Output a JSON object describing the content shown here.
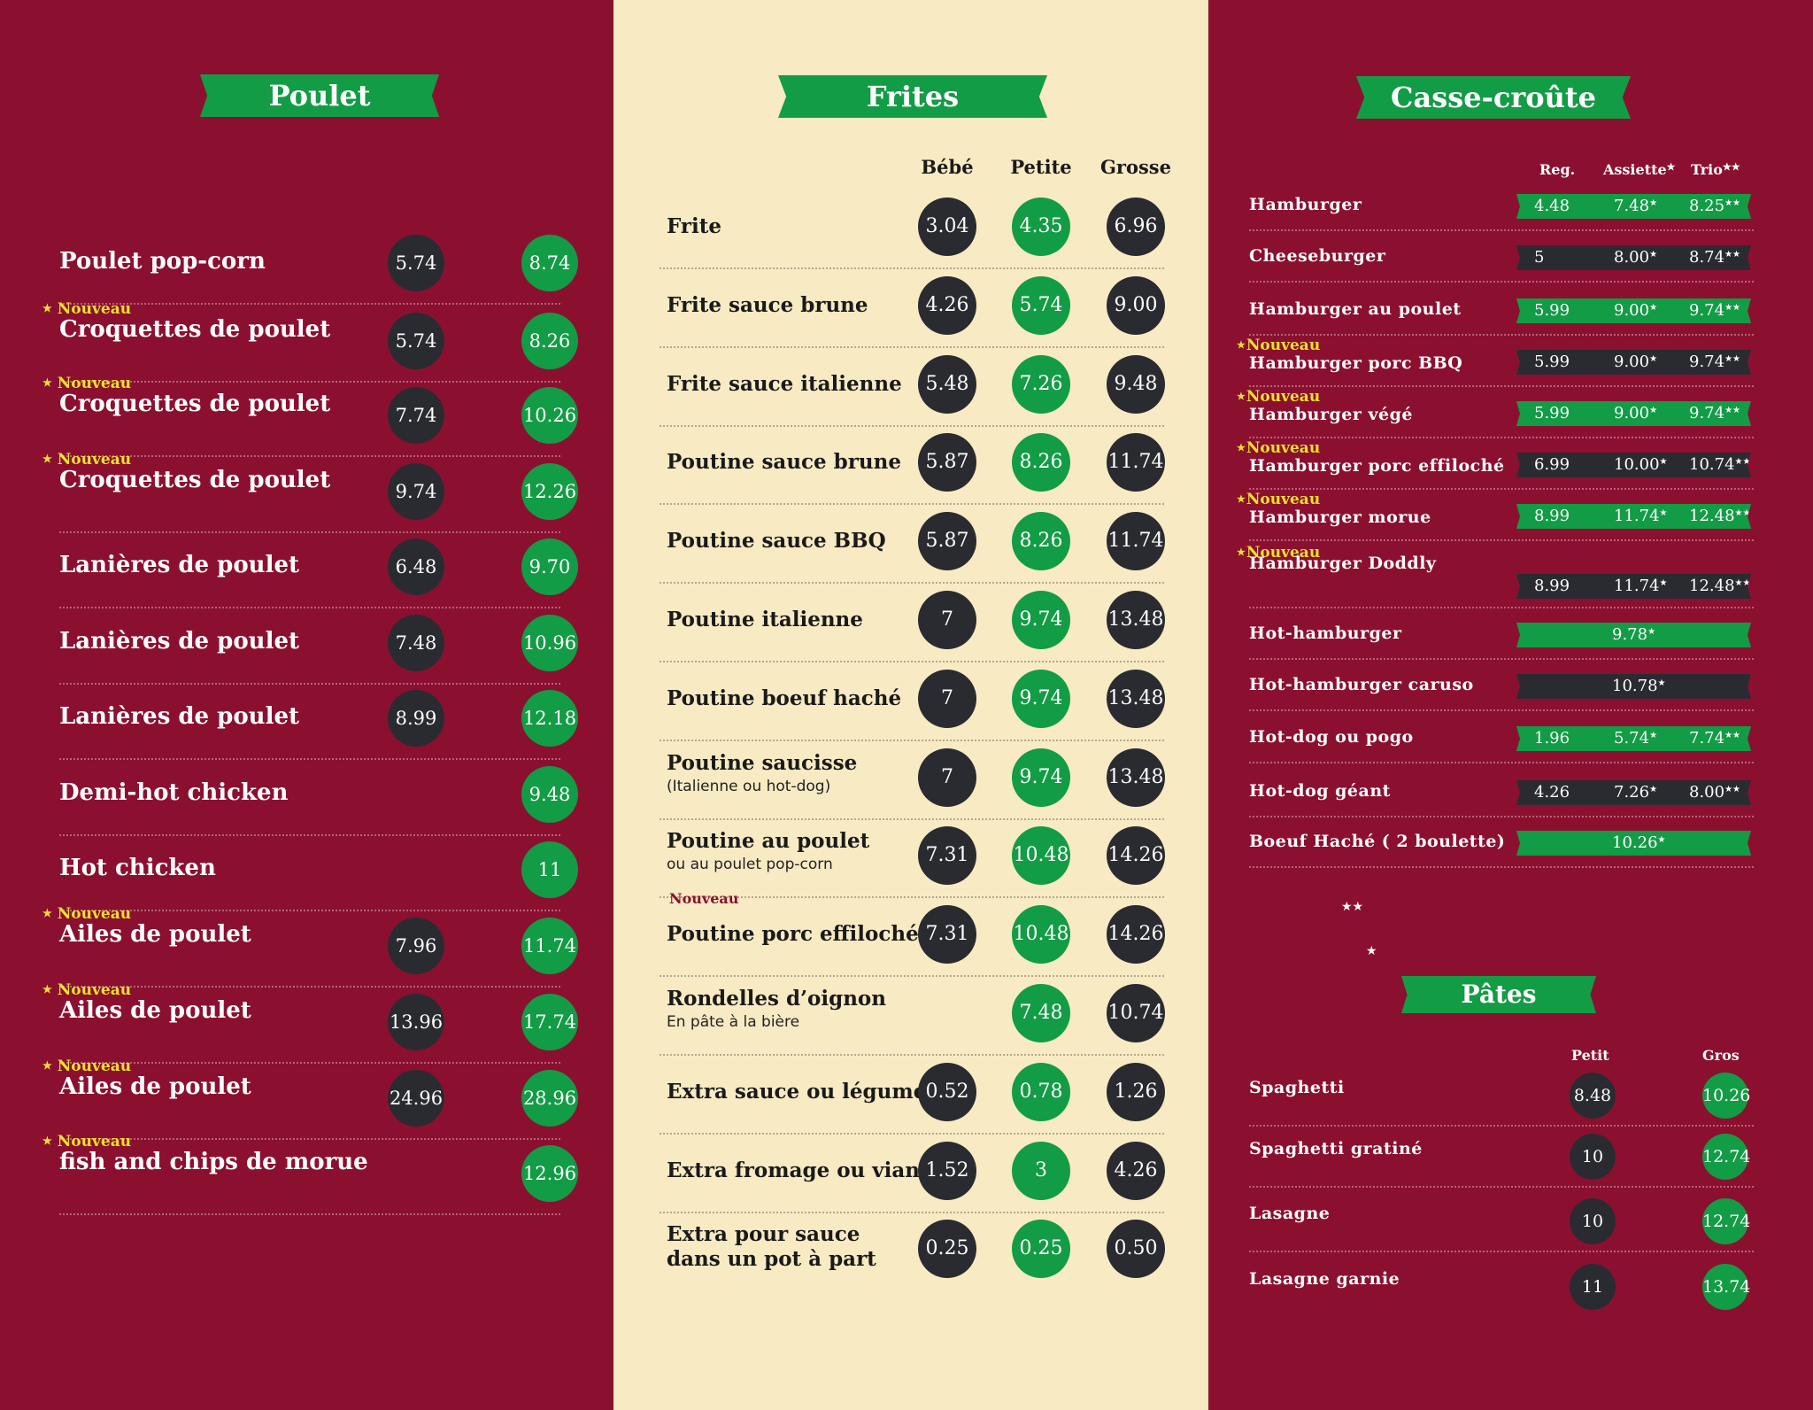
{
  "poulet": {
    "title": "Poulet",
    "items": [
      {
        "name": "Poulet pop-corn",
        "nouveau": "",
        "p1": "5.74",
        "p2": "8.74"
      },
      {
        "name": "Croquettes de poulet",
        "nouveau": "Nouveau",
        "p1": "5.74",
        "p2": "8.26"
      },
      {
        "name": "Croquettes de poulet",
        "nouveau": "Nouveau",
        "p1": "7.74",
        "p2": "10.26"
      },
      {
        "name": "Croquettes de poulet",
        "nouveau": "Nouveau",
        "p1": "9.74",
        "p2": "12.26"
      },
      {
        "name": "Lanières de poulet",
        "nouveau": "",
        "p1": "6.48",
        "p2": "9.70"
      },
      {
        "name": "Lanières de poulet",
        "nouveau": "",
        "p1": "7.48",
        "p2": "10.96"
      },
      {
        "name": "Lanières de poulet",
        "nouveau": "",
        "p1": "8.99",
        "p2": "12.18"
      },
      {
        "name": "Demi-hot chicken",
        "nouveau": "",
        "p1": "",
        "p2": "9.48"
      },
      {
        "name": "Hot chicken",
        "nouveau": "",
        "p1": "",
        "p2": "11"
      },
      {
        "name": "Ailes de poulet",
        "nouveau": "Nouveau",
        "p1": "7.96",
        "p2": "11.74"
      },
      {
        "name": "Ailes de poulet",
        "nouveau": "Nouveau",
        "p1": "13.96",
        "p2": "17.74"
      },
      {
        "name": "Ailes de poulet",
        "nouveau": "Nouveau",
        "p1": "24.96",
        "p2": "28.96"
      },
      {
        "name": "fish and chips de morue",
        "nouveau": "Nouveau",
        "p1": "",
        "p2": "12.96"
      }
    ]
  },
  "frites": {
    "title": "Frites",
    "headers": [
      "Bébé",
      "Petite",
      "Grosse"
    ],
    "items": [
      {
        "name": "Frite",
        "sub": "",
        "nouveau": "",
        "p": [
          "3.04",
          "4.35",
          "6.96"
        ]
      },
      {
        "name": "Frite sauce brune",
        "sub": "",
        "nouveau": "",
        "p": [
          "4.26",
          "5.74",
          "9.00"
        ]
      },
      {
        "name": "Frite sauce italienne",
        "sub": "",
        "nouveau": "",
        "p": [
          "5.48",
          "7.26",
          "9.48"
        ]
      },
      {
        "name": "Poutine sauce brune",
        "sub": "",
        "nouveau": "",
        "p": [
          "5.87",
          "8.26",
          "11.74"
        ]
      },
      {
        "name": "Poutine sauce BBQ",
        "sub": "",
        "nouveau": "",
        "p": [
          "5.87",
          "8.26",
          "11.74"
        ]
      },
      {
        "name": "Poutine italienne",
        "sub": "",
        "nouveau": "",
        "p": [
          "7",
          "9.74",
          "13.48"
        ]
      },
      {
        "name": "Poutine boeuf haché",
        "sub": "",
        "nouveau": "",
        "p": [
          "7",
          "9.74",
          "13.48"
        ]
      },
      {
        "name": "Poutine saucisse",
        "sub": "(Italienne ou hot-dog)",
        "nouveau": "",
        "p": [
          "7",
          "9.74",
          "13.48"
        ]
      },
      {
        "name": "Poutine au poulet",
        "sub": "ou au poulet pop-corn",
        "nouveau": "",
        "p": [
          "7.31",
          "10.48",
          "14.26"
        ]
      },
      {
        "name": "Poutine porc effiloché",
        "sub": "",
        "nouveau": "Nouveau",
        "p": [
          "7.31",
          "10.48",
          "14.26"
        ]
      },
      {
        "name": "Rondelles d’oignon",
        "sub": "En pâte à la bière",
        "nouveau": "",
        "p": [
          "",
          "7.48",
          "10.74"
        ]
      },
      {
        "name": "Extra sauce ou légume",
        "sub": "",
        "nouveau": "",
        "p": [
          "0.52",
          "0.78",
          "1.26"
        ]
      },
      {
        "name": "Extra fromage ou viande",
        "sub": "",
        "nouveau": "",
        "p": [
          "1.52",
          "3",
          "4.26"
        ]
      },
      {
        "name": "Extra pour sauce dans un pot à part",
        "sub": "",
        "nouveau": "",
        "p": [
          "0.25",
          "0.25",
          "0.50"
        ]
      }
    ]
  },
  "casse": {
    "title": "Casse-croûte",
    "headers": [
      "Reg.",
      "Assiette",
      "Trio"
    ],
    "items": [
      {
        "name": "Hamburger",
        "nouveau": "",
        "bar": "green",
        "reg": "4.48",
        "ass": "7.48",
        "trio": "8.25"
      },
      {
        "name": "Cheeseburger",
        "nouveau": "",
        "bar": "dark",
        "reg": "5",
        "ass": "8.00",
        "trio": "8.74"
      },
      {
        "name": "Hamburger au poulet",
        "nouveau": "",
        "bar": "green",
        "reg": "5.99",
        "ass": "9.00",
        "trio": "9.74"
      },
      {
        "name": "Hamburger porc BBQ",
        "nouveau": "Nouveau",
        "bar": "dark",
        "reg": "5.99",
        "ass": "9.00",
        "trio": "9.74"
      },
      {
        "name": "Hamburger végé",
        "nouveau": "Nouveau",
        "bar": "green",
        "reg": "5.99",
        "ass": "9.00",
        "trio": "9.74"
      },
      {
        "name": "Hamburger porc effiloché",
        "nouveau": "Nouveau",
        "bar": "dark",
        "reg": "6.99",
        "ass": "10.00",
        "trio": "10.74"
      },
      {
        "name": "Hamburger morue",
        "nouveau": "Nouveau",
        "bar": "green",
        "reg": "8.99",
        "ass": "11.74",
        "trio": "12.48"
      },
      {
        "name": "Hamburger Doddly",
        "nouveau": "Nouveau",
        "bar": "dark",
        "reg": "8.99",
        "ass": "11.74",
        "trio": "12.48"
      },
      {
        "name": "Hot-hamburger",
        "nouveau": "",
        "bar": "green",
        "reg": "",
        "ass": "9.78",
        "trio": ""
      },
      {
        "name": "Hot-hamburger caruso",
        "nouveau": "",
        "bar": "dark",
        "reg": "",
        "ass": "10.78",
        "trio": ""
      },
      {
        "name": "Hot-dog ou pogo",
        "nouveau": "",
        "bar": "green",
        "reg": "1.96",
        "ass": "5.74",
        "trio": "7.74"
      },
      {
        "name": "Hot-dog géant",
        "nouveau": "",
        "bar": "dark",
        "reg": "4.26",
        "ass": "7.26",
        "trio": "8.00"
      },
      {
        "name": "Boeuf Haché ( 2 boulette)",
        "nouveau": "",
        "bar": "green",
        "reg": "",
        "ass": "10.26",
        "trio": ""
      }
    ],
    "footnote_stars_1": "★★",
    "footnote_stars_2": "★"
  },
  "pates": {
    "title": "Pâtes",
    "headers": [
      "Petit",
      "Gros"
    ],
    "items": [
      {
        "name": "Spaghetti",
        "p1": "8.48",
        "p2": "10.26"
      },
      {
        "name": "Spaghetti gratiné",
        "p1": "10",
        "p2": "12.74"
      },
      {
        "name": "Lasagne",
        "p1": "10",
        "p2": "12.74"
      },
      {
        "name": "Lasagne garnie",
        "p1": "11",
        "p2": "13.74"
      }
    ]
  },
  "colors": {
    "burgundy": "#8b1030",
    "cream": "#f8eac3",
    "green": "#129c45",
    "dark": "#2a2b30",
    "yellow": "#f2e22a"
  }
}
